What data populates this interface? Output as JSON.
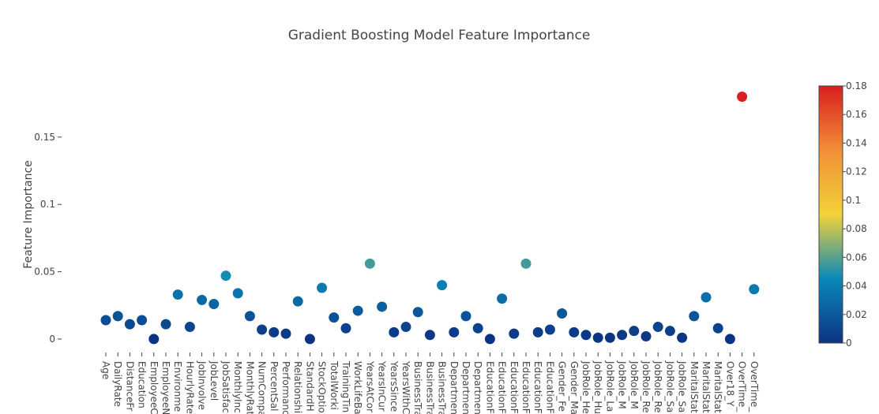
{
  "chart_data": {
    "type": "scatter",
    "title": "Gradient Boosting Model Feature Importance",
    "xlabel": "",
    "ylabel": "Feature Importance",
    "ylim": [
      -0.01,
      0.195
    ],
    "yticks": [
      0,
      0.05,
      0.1,
      0.15
    ],
    "ytick_labels": [
      "0",
      "0.05",
      "0.1",
      "0.15"
    ],
    "colorscale": "Portland",
    "colorbar": {
      "range": [
        0,
        0.18
      ],
      "ticks": [
        0,
        0.02,
        0.04,
        0.06,
        0.08,
        0.1,
        0.12,
        0.14,
        0.16,
        0.18
      ],
      "tick_labels": [
        "0",
        "0.02",
        "0.04",
        "0.06",
        "0.08",
        "0.1",
        "0.12",
        "0.14",
        "0.16",
        "0.18"
      ],
      "position": "right"
    },
    "grid": false,
    "categories": [
      "Age",
      "DailyRate",
      "DistanceFr",
      "Education",
      "EmployeeC",
      "EmployeeN",
      "Environme",
      "HourlyRate",
      "JobInvolve",
      "JobLevel",
      "JobSatisfac",
      "MonthlyInc",
      "MonthlyRat",
      "NumCompa",
      "PercentSal",
      "Performanc",
      "Relationshi",
      "StandardH",
      "StockOptio",
      "TotalWorki",
      "TrainingTin",
      "WorkLifeBa",
      "YearsAtCor",
      "YearsInCur",
      "YearsSince",
      "YearsWithC",
      "BusinessTra",
      "BusinessTra",
      "BusinessTra",
      "Departmen",
      "Departmen",
      "Departmen",
      "EducationF",
      "EducationF",
      "EducationF",
      "EducationF",
      "EducationF",
      "EducationF",
      "Gender_Fe",
      "Gender_Ma",
      "JobRole_He",
      "JobRole_Hu",
      "JobRole_La",
      "JobRole_M",
      "JobRole_M",
      "JobRole_Re",
      "JobRole_Re",
      "JobRole_Sa",
      "JobRole_Sa",
      "MaritalStat",
      "MaritalStat",
      "MaritalStat",
      "Over18_Y",
      "OverTime_",
      "OverTime_"
    ],
    "values": [
      0.014,
      0.017,
      0.011,
      0.014,
      0.0,
      0.011,
      0.033,
      0.009,
      0.029,
      0.026,
      0.047,
      0.034,
      0.017,
      0.007,
      0.005,
      0.004,
      0.028,
      0.0,
      0.038,
      0.016,
      0.008,
      0.021,
      0.056,
      0.024,
      0.005,
      0.009,
      0.02,
      0.003,
      0.04,
      0.005,
      0.017,
      0.008,
      0.0,
      0.03,
      0.004,
      0.056,
      0.005,
      0.007,
      0.019,
      0.005,
      0.003,
      0.001,
      0.001,
      0.003,
      0.006,
      0.002,
      0.009,
      0.006,
      0.001,
      0.017,
      0.031,
      0.008,
      0.0,
      0.18,
      0.037
    ]
  }
}
